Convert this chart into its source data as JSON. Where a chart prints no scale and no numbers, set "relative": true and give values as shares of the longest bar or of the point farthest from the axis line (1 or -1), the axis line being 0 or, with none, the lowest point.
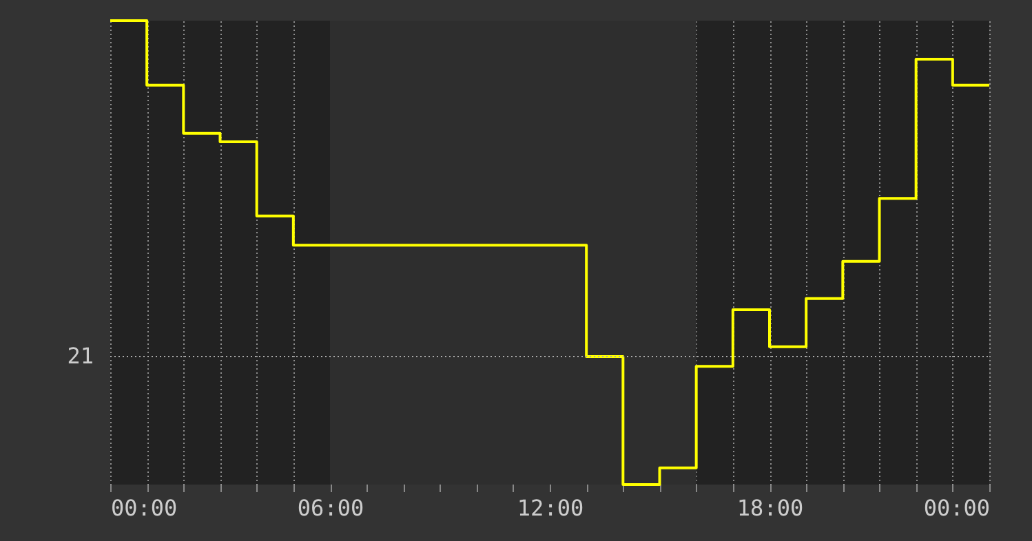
{
  "chart_data": {
    "type": "step",
    "relative": true,
    "x": [
      0,
      1,
      2,
      3,
      4,
      5,
      6,
      7,
      8,
      9,
      10,
      11,
      12,
      13,
      14,
      15,
      16,
      17,
      18,
      19,
      20,
      21,
      22,
      23,
      24
    ],
    "series": [
      {
        "color": "#ffff00",
        "values": [
          1.0,
          0.861,
          0.757,
          0.739,
          0.579,
          0.516,
          0.516,
          0.516,
          0.516,
          0.516,
          0.516,
          0.516,
          0.516,
          0.276,
          0.0,
          0.036,
          0.255,
          0.377,
          0.297,
          0.401,
          0.481,
          0.617,
          0.917,
          0.861,
          0.861
        ]
      }
    ],
    "xlim": [
      0,
      24
    ],
    "xticks": [
      {
        "value": 0,
        "label": "00:00"
      },
      {
        "value": 1,
        "label": null
      },
      {
        "value": 2,
        "label": null
      },
      {
        "value": 3,
        "label": null
      },
      {
        "value": 4,
        "label": null
      },
      {
        "value": 5,
        "label": null
      },
      {
        "value": 6,
        "label": "06:00"
      },
      {
        "value": 7,
        "label": null
      },
      {
        "value": 8,
        "label": null
      },
      {
        "value": 9,
        "label": null
      },
      {
        "value": 10,
        "label": null
      },
      {
        "value": 11,
        "label": null
      },
      {
        "value": 12,
        "label": "12:00"
      },
      {
        "value": 13,
        "label": null
      },
      {
        "value": 14,
        "label": null
      },
      {
        "value": 15,
        "label": null
      },
      {
        "value": 16,
        "label": null
      },
      {
        "value": 17,
        "label": null
      },
      {
        "value": 18,
        "label": "18:00"
      },
      {
        "value": 19,
        "label": null
      },
      {
        "value": 20,
        "label": null
      },
      {
        "value": 21,
        "label": null
      },
      {
        "value": 22,
        "label": null
      },
      {
        "value": 23,
        "label": null
      },
      {
        "value": 24,
        "label": "00:00"
      }
    ],
    "grid": "x",
    "ref_lines": [
      {
        "axis": "y",
        "value": 0.276,
        "color": "#aaaaaa",
        "line_style": "dotted"
      }
    ],
    "annotations": [
      "21"
    ],
    "bands": [
      {
        "axis": "x",
        "from": 6,
        "to": 16,
        "color": "#2e2e2e"
      }
    ]
  }
}
